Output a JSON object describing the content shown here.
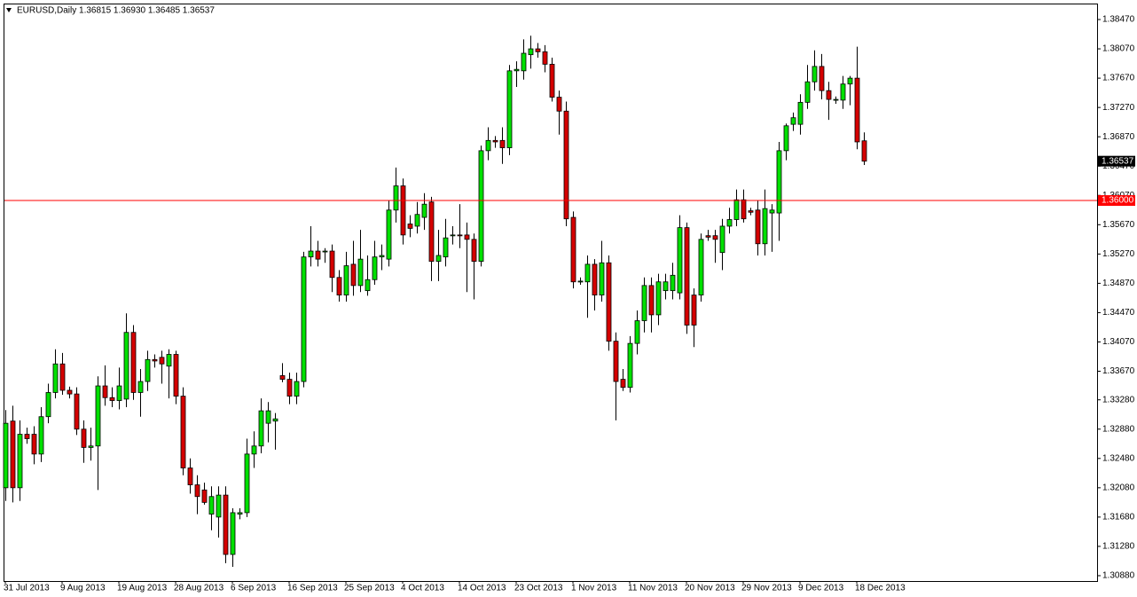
{
  "chart_data": {
    "type": "candlestick",
    "header": "EURUSD,Daily  1.36815 1.36930 1.36485 1.36537",
    "categories": [
      "31 Jul 2013",
      null,
      null,
      null,
      null,
      null,
      null,
      null,
      "9 Aug 2013",
      null,
      null,
      null,
      null,
      null,
      null,
      null,
      "19 Aug 2013",
      null,
      null,
      null,
      null,
      null,
      null,
      null,
      "28 Aug 2013",
      null,
      null,
      null,
      null,
      null,
      null,
      null,
      "6 Sep 2013",
      null,
      null,
      null,
      null,
      null,
      null,
      null,
      "16 Sep 2013",
      null,
      null,
      null,
      null,
      null,
      null,
      null,
      "25 Sep 2013",
      null,
      null,
      null,
      null,
      null,
      null,
      null,
      "4 Oct 2013",
      null,
      null,
      null,
      null,
      null,
      null,
      null,
      "14 Oct 2013",
      null,
      null,
      null,
      null,
      null,
      null,
      null,
      "23 Oct 2013",
      null,
      null,
      null,
      null,
      null,
      null,
      null,
      "1 Nov 2013",
      null,
      null,
      null,
      null,
      null,
      null,
      null,
      "11 Nov 2013",
      null,
      null,
      null,
      null,
      null,
      null,
      null,
      "20 Nov 2013",
      null,
      null,
      null,
      null,
      null,
      null,
      null,
      "29 Nov 2013",
      null,
      null,
      null,
      null,
      null,
      null,
      null,
      "9 Dec 2013",
      null,
      null,
      null,
      null,
      null,
      null,
      null,
      "18 Dec 2013",
      null
    ],
    "open": [
      1.3208,
      1.3299,
      1.3208,
      1.3281,
      1.3281,
      1.3254,
      1.3305,
      1.3338,
      1.3377,
      1.3341,
      1.3336,
      1.3288,
      1.3263,
      1.3265,
      1.3347,
      1.3331,
      1.3327,
      1.3329,
      1.342,
      1.3338,
      1.3353,
      1.3383,
      1.3386,
      1.3374,
      1.339,
      1.3333,
      1.3235,
      1.3212,
      1.3205,
      1.3172,
      1.3168,
      1.3198,
      1.3117,
      1.3172,
      1.3174,
      1.3254,
      1.3265,
      1.3296,
      1.3299,
      1.3361,
      1.3356,
      1.3333,
      1.3353,
      1.3523,
      1.3531,
      1.353,
      1.3531,
      1.3495,
      1.3471,
      1.3513,
      1.3484,
      1.3477,
      1.3492,
      1.3523,
      1.352,
      1.3587,
      1.362,
      1.3568,
      1.3565,
      1.3577,
      1.3598,
      1.3517,
      1.3523,
      1.3553,
      1.3553,
      1.3553,
      1.3547,
      1.3517,
      1.3668,
      1.3682,
      1.3682,
      1.3672,
      1.3777,
      1.3777,
      1.3799,
      1.3807,
      1.3803,
      1.3786,
      1.3741,
      1.3722,
      1.3577,
      1.3489,
      1.3489,
      1.3513,
      1.3471,
      1.3515,
      1.3408,
      1.3356,
      1.3345,
      1.3405,
      1.3436,
      1.3484,
      1.3444,
      1.3477,
      1.3477,
      1.3474,
      1.3563,
      1.3471,
      1.3471,
      1.3552,
      1.3552,
      1.3529,
      1.3565,
      1.3574,
      1.3601,
      1.3586,
      1.3587,
      1.3541,
      1.3583,
      1.3583,
      1.3668,
      1.3704,
      1.3704,
      1.3734,
      1.3762,
      1.3783,
      1.375,
      1.3737,
      1.3737,
      1.3759,
      1.3767,
      1.36815
    ],
    "high": [
      1.3314,
      1.332,
      1.33,
      1.329,
      1.3292,
      1.3318,
      1.335,
      1.3397,
      1.3392,
      1.3346,
      1.3345,
      1.33,
      1.329,
      1.336,
      1.3375,
      1.3345,
      1.3372,
      1.3446,
      1.343,
      1.337,
      1.3395,
      1.339,
      1.3395,
      1.3397,
      1.3395,
      1.3345,
      1.3248,
      1.3225,
      1.3215,
      1.321,
      1.321,
      1.321,
      1.318,
      1.318,
      1.3275,
      1.3285,
      1.333,
      1.3325,
      1.331,
      1.3378,
      1.3365,
      1.3365,
      1.353,
      1.3565,
      1.3545,
      1.3535,
      1.354,
      1.3505,
      1.353,
      1.3545,
      1.356,
      1.3525,
      1.3545,
      1.354,
      1.36,
      1.3645,
      1.363,
      1.358,
      1.3598,
      1.361,
      1.3605,
      1.356,
      1.3575,
      1.3565,
      1.3595,
      1.357,
      1.3555,
      1.3675,
      1.37,
      1.3688,
      1.37,
      1.3785,
      1.379,
      1.382,
      1.3825,
      1.3815,
      1.3812,
      1.3795,
      1.375,
      1.3735,
      1.3585,
      1.3495,
      1.3525,
      1.352,
      1.3545,
      1.3525,
      1.342,
      1.337,
      1.3415,
      1.345,
      1.3495,
      1.3495,
      1.35,
      1.35,
      1.3515,
      1.358,
      1.357,
      1.348,
      1.3555,
      1.356,
      1.356,
      1.3575,
      1.359,
      1.3615,
      1.3615,
      1.359,
      1.36,
      1.3615,
      1.3595,
      1.368,
      1.3705,
      1.372,
      1.3745,
      1.3785,
      1.3805,
      1.38,
      1.3762,
      1.3742,
      1.377,
      1.377,
      1.381,
      1.3693
    ],
    "low": [
      1.319,
      1.3188,
      1.319,
      1.3268,
      1.324,
      1.3243,
      1.3296,
      1.333,
      1.3335,
      1.333,
      1.328,
      1.3242,
      1.3245,
      1.3205,
      1.332,
      1.3318,
      1.3315,
      1.3318,
      1.3328,
      1.3305,
      1.334,
      1.3372,
      1.335,
      1.333,
      1.3322,
      1.3225,
      1.32,
      1.3172,
      1.3185,
      1.315,
      1.314,
      1.3105,
      1.31,
      1.3165,
      1.3168,
      1.3235,
      1.3255,
      1.327,
      1.326,
      1.3352,
      1.3322,
      1.3322,
      1.3345,
      1.351,
      1.351,
      1.3515,
      1.3475,
      1.3462,
      1.3462,
      1.347,
      1.3475,
      1.347,
      1.3485,
      1.3505,
      1.351,
      1.357,
      1.354,
      1.355,
      1.3555,
      1.356,
      1.349,
      1.349,
      1.351,
      1.354,
      1.3535,
      1.3475,
      1.3465,
      1.351,
      1.3655,
      1.3672,
      1.365,
      1.3662,
      1.3755,
      1.3765,
      1.378,
      1.3795,
      1.3775,
      1.3735,
      1.369,
      1.3565,
      1.348,
      1.3485,
      1.344,
      1.345,
      1.3462,
      1.3395,
      1.33,
      1.334,
      1.3338,
      1.339,
      1.342,
      1.342,
      1.343,
      1.3465,
      1.3465,
      1.3465,
      1.3418,
      1.34,
      1.3462,
      1.3545,
      1.3515,
      1.3505,
      1.3555,
      1.3565,
      1.357,
      1.358,
      1.3525,
      1.3525,
      1.353,
      1.3545,
      1.3655,
      1.3695,
      1.369,
      1.3725,
      1.375,
      1.3738,
      1.371,
      1.3732,
      1.3725,
      1.373,
      1.367,
      1.36485
    ],
    "close": [
      1.3296,
      1.3208,
      1.3281,
      1.3275,
      1.3254,
      1.3305,
      1.3338,
      1.3377,
      1.3341,
      1.3336,
      1.3288,
      1.3263,
      1.3265,
      1.3347,
      1.3331,
      1.3327,
      1.3347,
      1.342,
      1.3338,
      1.3353,
      1.3383,
      1.3381,
      1.3377,
      1.339,
      1.3333,
      1.3235,
      1.3212,
      1.3196,
      1.3188,
      1.3196,
      1.3198,
      1.3117,
      1.3174,
      1.3174,
      1.3254,
      1.3265,
      1.3313,
      1.3313,
      1.3302,
      1.3356,
      1.3333,
      1.3353,
      1.3523,
      1.3531,
      1.352,
      1.3531,
      1.3495,
      1.3471,
      1.3511,
      1.3484,
      1.352,
      1.3492,
      1.3523,
      1.3525,
      1.3587,
      1.362,
      1.3553,
      1.3562,
      1.3581,
      1.3595,
      1.3517,
      1.3525,
      1.3549,
      1.3553,
      1.3552,
      1.3547,
      1.3517,
      1.3668,
      1.3682,
      1.368,
      1.3672,
      1.3777,
      1.3779,
      1.3801,
      1.3807,
      1.3803,
      1.3786,
      1.3741,
      1.3722,
      1.3575,
      1.3489,
      1.349,
      1.3513,
      1.3471,
      1.3515,
      1.3408,
      1.3353,
      1.3345,
      1.3405,
      1.3436,
      1.3484,
      1.3444,
      1.3489,
      1.3489,
      1.3498,
      1.3563,
      1.343,
      1.343,
      1.3547,
      1.355,
      1.3547,
      1.3565,
      1.3574,
      1.3601,
      1.3575,
      1.3584,
      1.3541,
      1.3589,
      1.3587,
      1.3668,
      1.3702,
      1.3713,
      1.3734,
      1.3762,
      1.3783,
      1.375,
      1.3738,
      1.3738,
      1.3759,
      1.3767,
      1.368,
      1.36537
    ],
    "up_color": "#00e000",
    "down_color": "#d40000",
    "ylim": [
      1.30807,
      1.38676
    ],
    "yticks": [
      {
        "value": 1.3847,
        "label": "1.38470"
      },
      {
        "value": 1.3807,
        "label": "1.38070"
      },
      {
        "value": 1.3767,
        "label": "1.37670"
      },
      {
        "value": 1.3727,
        "label": "1.37270"
      },
      {
        "value": 1.3687,
        "label": "1.36870"
      },
      {
        "value": 1.3647,
        "label": "1.36470"
      },
      {
        "value": 1.3607,
        "label": "1.36070"
      },
      {
        "value": 1.3567,
        "label": "1.35670"
      },
      {
        "value": 1.3527,
        "label": "1.35270"
      },
      {
        "value": 1.3487,
        "label": "1.34870"
      },
      {
        "value": 1.3447,
        "label": "1.34470"
      },
      {
        "value": 1.3407,
        "label": "1.34070"
      },
      {
        "value": 1.3367,
        "label": "1.33670"
      },
      {
        "value": 1.3328,
        "label": "1.33280"
      },
      {
        "value": 1.3288,
        "label": "1.32880"
      },
      {
        "value": 1.3248,
        "label": "1.32480"
      },
      {
        "value": 1.3208,
        "label": "1.32080"
      },
      {
        "value": 1.3168,
        "label": "1.31680"
      },
      {
        "value": 1.3128,
        "label": "1.31280"
      },
      {
        "value": 1.3088,
        "label": "1.30880"
      }
    ],
    "hline": {
      "value": 1.36,
      "label": "1.36000",
      "color": "#ff0000"
    },
    "current_price": 1.36537
  }
}
